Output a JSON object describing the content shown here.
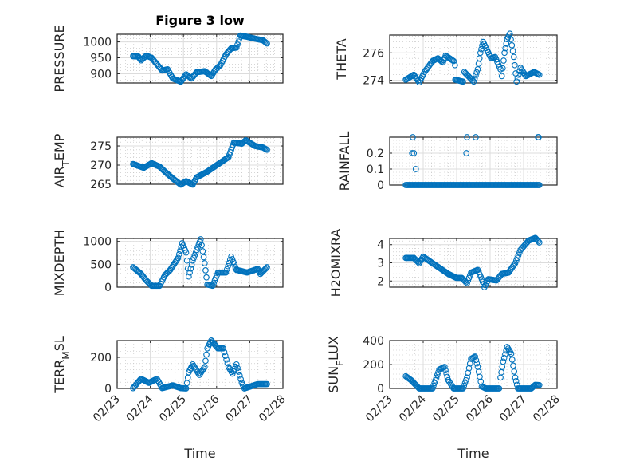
{
  "title": "Figure 3 low",
  "marker_color": "#0072BD",
  "chart_data": [
    {
      "type": "scatter",
      "name": "pressure",
      "ylabel": {
        "main": "PRESSURE",
        "sub": "",
        "rest": ""
      },
      "x_unit": "days since 02/23",
      "xlim": [
        0,
        5
      ],
      "xticks": [
        "02/23",
        "02/24",
        "02/25",
        "02/26",
        "02/27",
        "02/28"
      ],
      "xlabel": "",
      "ylim": [
        871,
        1024
      ],
      "yticks": [
        900,
        950,
        1000
      ],
      "dense": [
        [
          0.48,
          955
        ],
        [
          0.64,
          954
        ],
        [
          0.72,
          942
        ],
        [
          0.88,
          957
        ],
        [
          1.04,
          950
        ],
        [
          1.2,
          930
        ],
        [
          1.36,
          910
        ],
        [
          1.52,
          914
        ],
        [
          1.68,
          885
        ],
        [
          1.92,
          875
        ],
        [
          2.08,
          898
        ],
        [
          2.24,
          885
        ],
        [
          2.4,
          905
        ],
        [
          2.64,
          908
        ],
        [
          2.84,
          893
        ],
        [
          2.96,
          912
        ],
        [
          3.12,
          928
        ],
        [
          3.28,
          960
        ],
        [
          3.44,
          980
        ],
        [
          3.6,
          982
        ],
        [
          3.72,
          1020
        ],
        [
          3.92,
          1016
        ],
        [
          4.16,
          1010
        ],
        [
          4.4,
          1005
        ],
        [
          4.52,
          995
        ]
      ],
      "points": []
    },
    {
      "type": "scatter",
      "name": "theta",
      "ylabel": {
        "main": "THETA",
        "sub": "",
        "rest": ""
      },
      "x_unit": "days since 02/23",
      "xlim": [
        0,
        5
      ],
      "xticks": [
        "02/23",
        "02/24",
        "02/25",
        "02/26",
        "02/27",
        "02/28"
      ],
      "xlabel": "",
      "ylim": [
        273.8,
        277.3
      ],
      "yticks": [
        274,
        276
      ],
      "dense": [
        [
          0.48,
          274.04
        ],
        [
          0.72,
          274.4
        ],
        [
          0.88,
          273.85
        ],
        [
          1.04,
          274.6
        ],
        [
          1.28,
          275.4
        ],
        [
          1.44,
          275.6
        ],
        [
          1.59,
          275.3
        ],
        [
          1.67,
          275.8
        ],
        [
          1.91,
          275.4
        ],
        [
          1.95,
          275.1
        ],
        [
          1.96,
          274.04
        ],
        [
          2.19,
          273.9
        ],
        [
          2.23,
          274.6
        ],
        [
          2.51,
          273.9
        ],
        [
          2.63,
          274.8
        ],
        [
          2.71,
          276
        ],
        [
          2.79,
          276.8
        ],
        [
          2.91,
          276.2
        ],
        [
          3.03,
          275.6
        ],
        [
          3.15,
          275.7
        ],
        [
          3.31,
          274.8
        ],
        [
          3.35,
          274.3
        ],
        [
          3.43,
          276
        ],
        [
          3.51,
          277
        ],
        [
          3.59,
          277.4
        ],
        [
          3.71,
          275.7
        ],
        [
          3.79,
          273.9
        ],
        [
          3.91,
          274.9
        ],
        [
          4.07,
          274.3
        ],
        [
          4.31,
          274.6
        ],
        [
          4.47,
          274.4
        ]
      ],
      "points": []
    },
    {
      "type": "scatter",
      "name": "air-temp",
      "ylabel": {
        "main": "AIR",
        "sub": "T",
        "rest": "EMP"
      },
      "x_unit": "days since 02/23",
      "xlim": [
        0,
        5
      ],
      "xticks": [
        "02/23",
        "02/24",
        "02/25",
        "02/26",
        "02/27",
        "02/28"
      ],
      "xlabel": "",
      "ylim": [
        265,
        277.3
      ],
      "yticks": [
        265,
        270,
        275
      ],
      "dense": [
        [
          0.48,
          270.3
        ],
        [
          0.8,
          269.3
        ],
        [
          1.04,
          270.5
        ],
        [
          1.28,
          269.6
        ],
        [
          1.48,
          268
        ],
        [
          1.68,
          266.5
        ],
        [
          1.92,
          264.9
        ],
        [
          2.08,
          265.8
        ],
        [
          2.28,
          264.9
        ],
        [
          2.4,
          266.8
        ],
        [
          2.72,
          268.3
        ],
        [
          3.04,
          270.2
        ],
        [
          3.36,
          272.1
        ],
        [
          3.44,
          274
        ],
        [
          3.52,
          275.9
        ],
        [
          3.76,
          275.6
        ],
        [
          3.88,
          276.5
        ],
        [
          4.16,
          275
        ],
        [
          4.4,
          274.6
        ],
        [
          4.52,
          274
        ]
      ],
      "points": []
    },
    {
      "type": "scatter",
      "name": "rainfall",
      "ylabel": {
        "main": "RAINFALL",
        "sub": "",
        "rest": ""
      },
      "x_unit": "days since 02/23",
      "xlim": [
        0,
        5
      ],
      "xticks": [
        "02/23",
        "02/24",
        "02/25",
        "02/26",
        "02/27",
        "02/28"
      ],
      "xlabel": "",
      "ylim": [
        0,
        0.3
      ],
      "yticks": [
        0,
        0.1,
        0.2
      ],
      "dense": [
        [
          0.48,
          0
        ],
        [
          4.47,
          0
        ]
      ],
      "points": [
        [
          0.69,
          0.3
        ],
        [
          0.67,
          0.2
        ],
        [
          0.72,
          0.2
        ],
        [
          0.78,
          0.1
        ],
        [
          2.31,
          0.3
        ],
        [
          2.29,
          0.2
        ],
        [
          2.57,
          0.3
        ],
        [
          4.43,
          0.3
        ],
        [
          4.45,
          0.3
        ]
      ]
    },
    {
      "type": "scatter",
      "name": "mixdepth",
      "ylabel": {
        "main": "MIXDEPTH",
        "sub": "",
        "rest": ""
      },
      "x_unit": "days since 02/23",
      "xlim": [
        0,
        5
      ],
      "xticks": [
        "02/23",
        "02/24",
        "02/25",
        "02/26",
        "02/27",
        "02/28"
      ],
      "xlabel": "",
      "ylim": [
        0,
        1065
      ],
      "yticks": [
        0,
        500,
        1000
      ],
      "dense": [
        [
          0.48,
          436
        ],
        [
          0.72,
          291
        ],
        [
          0.88,
          145
        ],
        [
          1.04,
          30
        ],
        [
          1.28,
          30
        ],
        [
          1.44,
          262
        ],
        [
          1.6,
          378
        ],
        [
          1.84,
          640
        ],
        [
          1.96,
          960
        ],
        [
          2.08,
          756
        ],
        [
          2.16,
          232
        ],
        [
          2.28,
          581
        ],
        [
          2.4,
          815
        ],
        [
          2.52,
          1047
        ],
        [
          2.64,
          524
        ],
        [
          2.72,
          58
        ],
        [
          2.88,
          30
        ],
        [
          3.04,
          320
        ],
        [
          3.28,
          320
        ],
        [
          3.44,
          669
        ],
        [
          3.6,
          378
        ],
        [
          3.92,
          320
        ],
        [
          4.24,
          400
        ],
        [
          4.32,
          290
        ],
        [
          4.52,
          436
        ]
      ],
      "points": []
    },
    {
      "type": "scatter",
      "name": "h2omixratio",
      "ylabel": {
        "main": "H2OMIXRA",
        "sub": "",
        "rest": ""
      },
      "x_unit": "days since 02/23",
      "xlim": [
        0,
        5
      ],
      "xticks": [
        "02/23",
        "02/24",
        "02/25",
        "02/26",
        "02/27",
        "02/28"
      ],
      "xlabel": "",
      "ylim": [
        1.66,
        4.34
      ],
      "yticks": [
        2,
        3,
        4
      ],
      "dense": [
        [
          0.48,
          3.27
        ],
        [
          0.72,
          3.27
        ],
        [
          0.88,
          2.98
        ],
        [
          1.0,
          3.34
        ],
        [
          1.28,
          2.98
        ],
        [
          1.52,
          2.68
        ],
        [
          1.75,
          2.39
        ],
        [
          1.99,
          2.17
        ],
        [
          2.15,
          2.17
        ],
        [
          2.31,
          1.88
        ],
        [
          2.43,
          2.46
        ],
        [
          2.63,
          2.61
        ],
        [
          2.75,
          2.1
        ],
        [
          2.83,
          1.66
        ],
        [
          2.95,
          2.1
        ],
        [
          3.19,
          2.03
        ],
        [
          3.35,
          2.39
        ],
        [
          3.55,
          2.46
        ],
        [
          3.75,
          2.98
        ],
        [
          3.91,
          3.71
        ],
        [
          4.15,
          4.22
        ],
        [
          4.35,
          4.37
        ],
        [
          4.47,
          4.12
        ]
      ],
      "points": []
    },
    {
      "type": "scatter",
      "name": "terr-msl",
      "ylabel": {
        "main": "TERR",
        "sub": "M",
        "rest": "SL"
      },
      "x_unit": "days since 02/23",
      "xlim": [
        0,
        5
      ],
      "xticks": [
        "02/23",
        "02/24",
        "02/25",
        "02/26",
        "02/27",
        "02/28"
      ],
      "xlabel": "Time",
      "ylim": [
        0,
        308
      ],
      "yticks": [
        0,
        200
      ],
      "dense": [
        [
          0.48,
          2
        ],
        [
          0.72,
          62
        ],
        [
          0.96,
          36
        ],
        [
          1.2,
          62
        ],
        [
          1.36,
          2
        ],
        [
          1.68,
          20
        ],
        [
          1.92,
          2
        ],
        [
          2.08,
          0
        ],
        [
          2.16,
          104
        ],
        [
          2.28,
          155
        ],
        [
          2.48,
          87
        ],
        [
          2.64,
          138
        ],
        [
          2.72,
          258
        ],
        [
          2.84,
          309
        ],
        [
          3.04,
          258
        ],
        [
          3.2,
          258
        ],
        [
          3.36,
          138
        ],
        [
          3.48,
          95
        ],
        [
          3.6,
          155
        ],
        [
          3.76,
          36
        ],
        [
          3.84,
          0
        ],
        [
          4.24,
          28
        ],
        [
          4.52,
          28
        ]
      ],
      "points": []
    },
    {
      "type": "scatter",
      "name": "sun-flux",
      "ylabel": {
        "main": "SUN",
        "sub": "F",
        "rest": "LUX"
      },
      "x_unit": "days since 02/23",
      "xlim": [
        0,
        5
      ],
      "xticks": [
        "02/23",
        "02/24",
        "02/25",
        "02/26",
        "02/27",
        "02/28"
      ],
      "xlabel": "Time",
      "ylim": [
        0,
        400
      ],
      "yticks": [
        0,
        200,
        400
      ],
      "dense": [
        [
          0.48,
          102
        ],
        [
          0.64,
          69
        ],
        [
          0.88,
          0
        ],
        [
          1.28,
          0
        ],
        [
          1.48,
          158
        ],
        [
          1.64,
          180
        ],
        [
          1.75,
          69
        ],
        [
          1.91,
          0
        ],
        [
          2.19,
          0
        ],
        [
          2.31,
          91
        ],
        [
          2.43,
          247
        ],
        [
          2.55,
          267
        ],
        [
          2.63,
          180
        ],
        [
          2.75,
          16
        ],
        [
          2.87,
          0
        ],
        [
          3.27,
          0
        ],
        [
          3.31,
          91
        ],
        [
          3.39,
          224
        ],
        [
          3.51,
          347
        ],
        [
          3.63,
          291
        ],
        [
          3.75,
          91
        ],
        [
          3.83,
          0
        ],
        [
          4.23,
          0
        ],
        [
          4.35,
          30
        ],
        [
          4.47,
          28
        ]
      ],
      "points": []
    }
  ]
}
